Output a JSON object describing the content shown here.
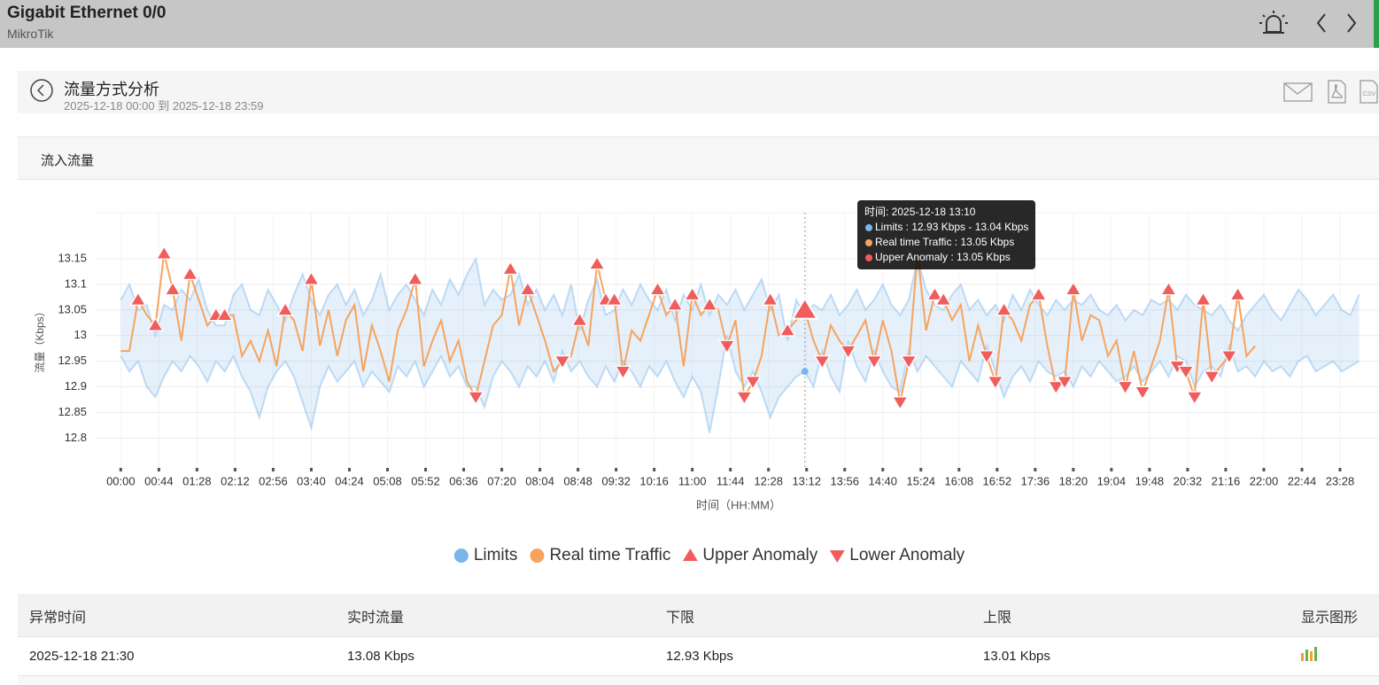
{
  "header": {
    "title": "Gigabit Ethernet 0/0",
    "subtitle": "MikroTik"
  },
  "section": {
    "title": "流量方式分析",
    "date_range": "2025-12-18 00:00 到 2025-12-18 23:59"
  },
  "panel": {
    "title": "流入流量"
  },
  "chart_data": {
    "type": "line",
    "y_label": "流量（Kbps）",
    "x_label": "时间（HH:MM）",
    "xlim": [
      -29,
      1453
    ],
    "ylim": [
      12.74,
      13.24
    ],
    "yticks": [
      12.8,
      12.85,
      12.9,
      12.95,
      13,
      13.05,
      13.1,
      13.15
    ],
    "xticks": [
      {
        "value": 0,
        "label": "00:00"
      },
      {
        "value": 44,
        "label": "00:44"
      },
      {
        "value": 88,
        "label": "01:28"
      },
      {
        "value": 132,
        "label": "02:12"
      },
      {
        "value": 176,
        "label": "02:56"
      },
      {
        "value": 220,
        "label": "03:40"
      },
      {
        "value": 264,
        "label": "04:24"
      },
      {
        "value": 308,
        "label": "05:08"
      },
      {
        "value": 352,
        "label": "05:52"
      },
      {
        "value": 396,
        "label": "06:36"
      },
      {
        "value": 440,
        "label": "07:20"
      },
      {
        "value": 484,
        "label": "08:04"
      },
      {
        "value": 528,
        "label": "08:48"
      },
      {
        "value": 572,
        "label": "09:32"
      },
      {
        "value": 616,
        "label": "10:16"
      },
      {
        "value": 660,
        "label": "11:00"
      },
      {
        "value": 704,
        "label": "11:44"
      },
      {
        "value": 748,
        "label": "12:28"
      },
      {
        "value": 792,
        "label": "13:12"
      },
      {
        "value": 836,
        "label": "13:56"
      },
      {
        "value": 880,
        "label": "14:40"
      },
      {
        "value": 924,
        "label": "15:24"
      },
      {
        "value": 968,
        "label": "16:08"
      },
      {
        "value": 1012,
        "label": "16:52"
      },
      {
        "value": 1056,
        "label": "17:36"
      },
      {
        "value": 1100,
        "label": "18:20"
      },
      {
        "value": 1144,
        "label": "19:04"
      },
      {
        "value": 1188,
        "label": "19:48"
      },
      {
        "value": 1232,
        "label": "20:32"
      },
      {
        "value": 1276,
        "label": "21:16"
      },
      {
        "value": 1320,
        "label": "22:00"
      },
      {
        "value": 1364,
        "label": "22:44"
      },
      {
        "value": 1408,
        "label": "23:28"
      }
    ],
    "grid": true,
    "x": [
      0,
      10,
      20,
      30,
      40,
      50,
      60,
      70,
      80,
      90,
      100,
      110,
      120,
      130,
      140,
      150,
      160,
      170,
      180,
      190,
      200,
      210,
      220,
      230,
      240,
      250,
      260,
      270,
      280,
      290,
      300,
      310,
      320,
      330,
      340,
      350,
      360,
      370,
      380,
      390,
      400,
      410,
      420,
      430,
      440,
      450,
      460,
      470,
      480,
      490,
      500,
      510,
      520,
      530,
      540,
      550,
      560,
      570,
      580,
      590,
      600,
      610,
      620,
      630,
      640,
      650,
      660,
      670,
      680,
      690,
      700,
      710,
      720,
      730,
      740,
      750,
      760,
      770,
      780,
      790,
      800,
      810,
      820,
      830,
      840,
      850,
      860,
      870,
      880,
      890,
      900,
      910,
      920,
      930,
      940,
      950,
      960,
      970,
      980,
      990,
      1000,
      1010,
      1020,
      1030,
      1040,
      1050,
      1060,
      1070,
      1080,
      1090,
      1100,
      1110,
      1120,
      1130,
      1140,
      1150,
      1160,
      1170,
      1180,
      1190,
      1200,
      1210,
      1220,
      1230,
      1240,
      1250,
      1260,
      1270,
      1280,
      1290,
      1300,
      1310,
      1320,
      1330,
      1340,
      1350,
      1360,
      1370,
      1380,
      1390,
      1400,
      1410,
      1420,
      1430
    ],
    "series": [
      {
        "name": "Limits",
        "color": "#7cb5ec",
        "marker": "circle",
        "lower": [
          12.96,
          12.93,
          12.95,
          12.9,
          12.88,
          12.92,
          12.95,
          12.93,
          12.96,
          12.94,
          12.91,
          12.95,
          12.93,
          12.96,
          12.92,
          12.89,
          12.84,
          12.9,
          12.93,
          12.95,
          12.92,
          12.87,
          12.82,
          12.9,
          12.94,
          12.91,
          12.93,
          12.95,
          12.9,
          12.93,
          12.91,
          12.89,
          12.94,
          12.92,
          12.95,
          12.9,
          12.93,
          12.96,
          12.92,
          12.94,
          12.9,
          12.9,
          12.86,
          12.92,
          12.95,
          12.93,
          12.9,
          12.94,
          12.92,
          12.95,
          12.91,
          12.97,
          12.93,
          12.95,
          12.92,
          12.9,
          12.94,
          12.91,
          12.95,
          12.93,
          12.9,
          12.94,
          12.92,
          12.95,
          12.91,
          12.88,
          12.92,
          12.89,
          12.81,
          12.9,
          13.0,
          12.93,
          12.9,
          12.93,
          12.89,
          12.84,
          12.88,
          12.9,
          12.92,
          12.93,
          12.9,
          12.97,
          12.92,
          12.89,
          12.99,
          12.94,
          12.91,
          12.97,
          12.93,
          12.9,
          12.89,
          12.97,
          12.93,
          12.96,
          12.94,
          12.92,
          12.9,
          12.95,
          12.93,
          12.91,
          12.98,
          12.93,
          12.88,
          12.92,
          12.94,
          12.91,
          12.95,
          12.93,
          12.92,
          12.93,
          12.9,
          12.94,
          12.92,
          12.95,
          12.93,
          12.91,
          12.92,
          12.94,
          12.91,
          12.93,
          12.95,
          12.92,
          12.96,
          12.95,
          12.9,
          12.93,
          12.94,
          12.92,
          12.98,
          12.93,
          12.94,
          12.92,
          12.95,
          12.93,
          12.94,
          12.92,
          12.95,
          12.96,
          12.93,
          12.94,
          12.95,
          12.93,
          12.94,
          12.95
        ],
        "upper": [
          13.07,
          13.1,
          13.05,
          13.06,
          13.0,
          13.06,
          13.05,
          13.09,
          13.07,
          13.11,
          13.05,
          13.02,
          13.02,
          13.08,
          13.1,
          13.05,
          13.04,
          13.09,
          13.06,
          13.03,
          13.08,
          13.12,
          13.07,
          13.04,
          13.08,
          13.1,
          13.06,
          13.09,
          13.04,
          13.07,
          13.12,
          13.05,
          13.08,
          13.1,
          13.07,
          13.04,
          13.09,
          13.06,
          13.11,
          13.08,
          13.12,
          13.15,
          13.06,
          13.09,
          13.07,
          13.08,
          13.12,
          13.06,
          13.09,
          13.05,
          13.08,
          13.04,
          13.1,
          13.01,
          13.07,
          13.11,
          13.04,
          13.05,
          13.09,
          13.06,
          13.1,
          13.07,
          13.05,
          13.09,
          13.03,
          13.08,
          13.05,
          13.1,
          13.04,
          13.08,
          13.06,
          13.09,
          13.05,
          13.08,
          13.11,
          13.05,
          13.08,
          12.99,
          13.07,
          13.04,
          13.06,
          13.05,
          13.08,
          13.04,
          13.06,
          13.09,
          13.05,
          13.07,
          13.1,
          13.06,
          13.04,
          13.07,
          13.15,
          13.09,
          13.06,
          13.05,
          13.08,
          13.1,
          13.05,
          13.07,
          13.04,
          13.06,
          13.03,
          13.08,
          13.05,
          13.09,
          13.06,
          13.04,
          13.07,
          13.05,
          13.07,
          13.06,
          13.08,
          13.05,
          13.04,
          13.06,
          13.03,
          13.05,
          13.04,
          13.07,
          13.06,
          13.07,
          13.05,
          13.08,
          13.06,
          13.05,
          13.04,
          13.06,
          13.03,
          13.01,
          13.04,
          13.06,
          13.08,
          13.05,
          13.03,
          13.06,
          13.09,
          13.07,
          13.04,
          13.06,
          13.08,
          13.05,
          13.04,
          13.08
        ]
      },
      {
        "name": "Real time Traffic",
        "color": "#f7a35c",
        "marker": "circle",
        "values": [
          12.97,
          12.97,
          13.07,
          13.04,
          13.02,
          13.16,
          13.09,
          12.99,
          13.12,
          13.07,
          13.02,
          13.04,
          13.04,
          13.04,
          12.96,
          12.99,
          12.95,
          13.01,
          12.94,
          13.05,
          13.03,
          12.97,
          13.11,
          12.98,
          13.05,
          12.96,
          13.03,
          13.06,
          12.93,
          13.02,
          12.97,
          12.91,
          13.01,
          13.05,
          13.11,
          12.94,
          12.99,
          13.03,
          12.95,
          12.99,
          12.91,
          12.88,
          12.95,
          13.02,
          13.04,
          13.13,
          13.02,
          13.09,
          13.04,
          12.99,
          12.93,
          12.95,
          12.96,
          13.03,
          12.98,
          13.14,
          13.07,
          13.07,
          12.93,
          13.01,
          12.99,
          13.04,
          13.09,
          13.04,
          13.06,
          12.94,
          13.08,
          13.04,
          13.06,
          13.05,
          12.98,
          13.03,
          12.88,
          12.91,
          12.96,
          13.07,
          13.0,
          13.01,
          13.03,
          13.05,
          12.99,
          12.95,
          13.02,
          12.99,
          12.97,
          13.0,
          13.03,
          12.95,
          13.03,
          12.97,
          12.87,
          12.95,
          13.16,
          13.01,
          13.08,
          13.07,
          13.03,
          13.06,
          12.95,
          13.02,
          12.96,
          12.91,
          13.05,
          13.03,
          12.99,
          13.06,
          13.08,
          12.98,
          12.9,
          12.91,
          13.09,
          12.99,
          13.04,
          13.03,
          12.96,
          12.99,
          12.9,
          12.97,
          12.89,
          12.94,
          12.99,
          13.09,
          12.94,
          12.93,
          12.88,
          13.07,
          12.92,
          12.94,
          12.96,
          13.08,
          12.96,
          12.98,
          null,
          null,
          null,
          null,
          null,
          null,
          null,
          null,
          null,
          null,
          null,
          null
        ]
      },
      {
        "name": "Upper Anomaly",
        "color": "#f15c5c",
        "marker": "triangle-up",
        "values": [
          null,
          null,
          13.07,
          null,
          13.02,
          13.16,
          13.09,
          null,
          13.12,
          null,
          null,
          13.04,
          13.04,
          null,
          null,
          null,
          null,
          null,
          null,
          13.05,
          null,
          null,
          13.11,
          null,
          null,
          null,
          null,
          null,
          null,
          null,
          null,
          null,
          null,
          null,
          13.11,
          null,
          null,
          null,
          null,
          null,
          null,
          null,
          null,
          null,
          null,
          13.13,
          null,
          13.09,
          null,
          null,
          null,
          null,
          null,
          13.03,
          null,
          13.14,
          13.07,
          13.07,
          null,
          null,
          null,
          null,
          13.09,
          null,
          13.06,
          null,
          13.08,
          null,
          13.06,
          null,
          null,
          null,
          null,
          null,
          null,
          13.07,
          null,
          13.01,
          null,
          13.05,
          null,
          null,
          null,
          null,
          null,
          null,
          null,
          null,
          null,
          null,
          null,
          null,
          null,
          null,
          13.08,
          13.07,
          null,
          null,
          null,
          null,
          null,
          null,
          13.05,
          null,
          null,
          null,
          13.08,
          null,
          null,
          null,
          13.09,
          null,
          null,
          null,
          null,
          null,
          null,
          null,
          null,
          null,
          null,
          13.09,
          null,
          null,
          null,
          13.07,
          null,
          null,
          null,
          13.08,
          null,
          null,
          null,
          null,
          null,
          null,
          null,
          null,
          null,
          null,
          null,
          null,
          null,
          null
        ]
      },
      {
        "name": "Lower Anomaly",
        "color": "#f15c5c",
        "marker": "triangle-down",
        "values": [
          null,
          null,
          null,
          null,
          null,
          null,
          null,
          null,
          null,
          null,
          null,
          null,
          null,
          null,
          null,
          null,
          null,
          null,
          null,
          null,
          null,
          null,
          null,
          null,
          null,
          null,
          null,
          null,
          null,
          null,
          null,
          null,
          null,
          null,
          null,
          null,
          null,
          null,
          null,
          null,
          null,
          12.88,
          null,
          null,
          null,
          null,
          null,
          null,
          null,
          null,
          null,
          12.95,
          null,
          null,
          null,
          null,
          null,
          null,
          12.93,
          null,
          null,
          null,
          null,
          null,
          null,
          null,
          null,
          null,
          null,
          null,
          12.98,
          null,
          12.88,
          12.91,
          null,
          null,
          null,
          null,
          null,
          null,
          null,
          12.95,
          null,
          null,
          12.97,
          null,
          null,
          12.95,
          null,
          null,
          12.87,
          12.95,
          null,
          null,
          null,
          null,
          null,
          null,
          null,
          null,
          12.96,
          12.91,
          null,
          null,
          null,
          null,
          null,
          null,
          12.9,
          12.91,
          null,
          null,
          null,
          null,
          null,
          null,
          12.9,
          null,
          12.89,
          null,
          null,
          null,
          12.94,
          12.93,
          12.88,
          null,
          12.92,
          null,
          12.96,
          null,
          null,
          null,
          null,
          null,
          null,
          null,
          null,
          null,
          null,
          null,
          null,
          null,
          null,
          null
        ]
      }
    ],
    "tooltip": {
      "title": "时间: 2025-12-18 13:10",
      "lines": [
        "Limits : 12.93 Kbps - 13.04 Kbps",
        "Real time Traffic : 13.05 Kbps",
        "Upper Anomaly : 13.05 Kbps"
      ]
    }
  },
  "table": {
    "headers": [
      "异常时间",
      "实时流量",
      "下限",
      "上限",
      "显示图形"
    ],
    "rows": [
      [
        "2025-12-18 21:30",
        "13.08 Kbps",
        "12.93 Kbps",
        "13.01 Kbps"
      ]
    ]
  }
}
